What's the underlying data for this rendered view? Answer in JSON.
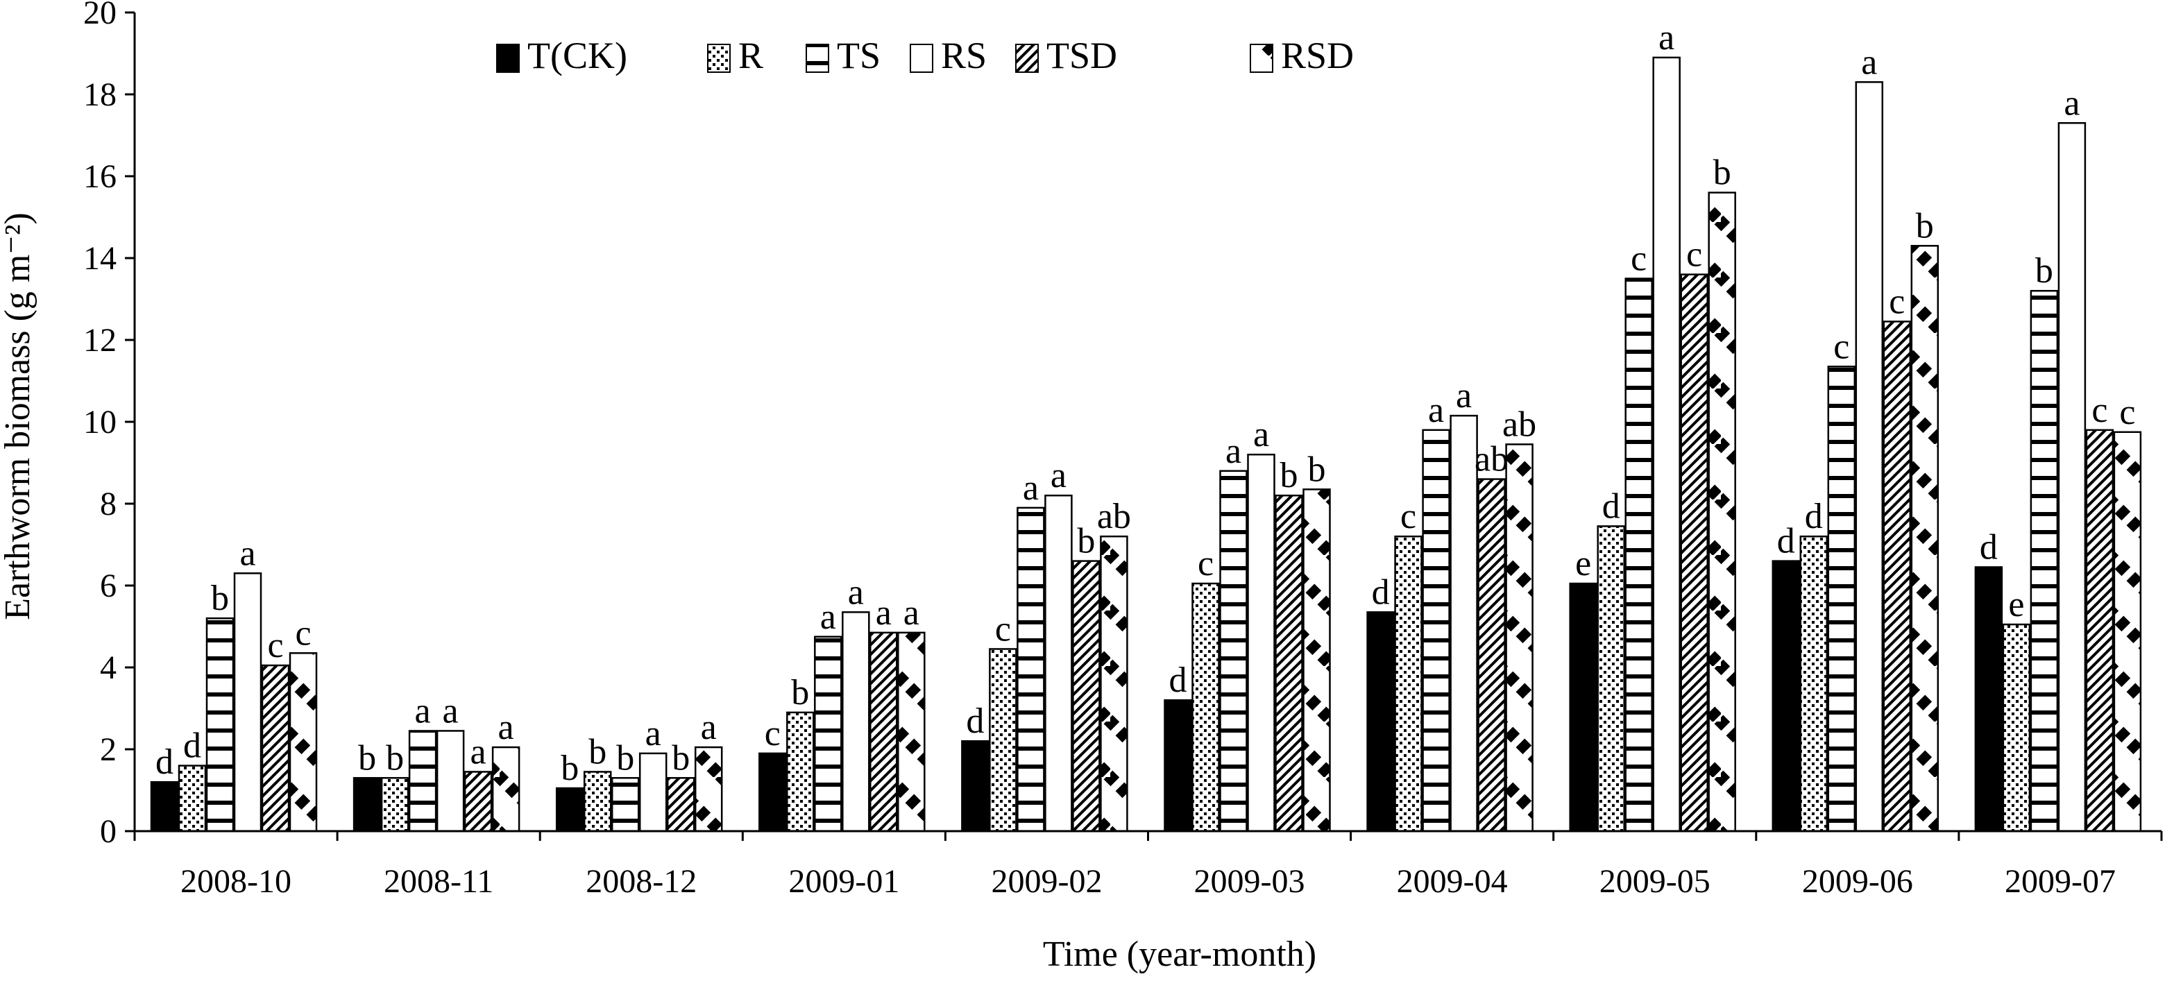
{
  "chart_data": {
    "type": "bar",
    "title": "",
    "xlabel": "Time (year-month)",
    "ylabel": "Earthworm biomass (g m⁻²)",
    "ylim": [
      0,
      20
    ],
    "yticks": [
      0,
      2,
      4,
      6,
      8,
      10,
      12,
      14,
      16,
      18,
      20
    ],
    "grid": false,
    "legend_position": "top-left",
    "categories": [
      "2008-10",
      "2008-11",
      "2008-12",
      "2009-01",
      "2009-02",
      "2009-03",
      "2009-04",
      "2009-05",
      "2009-06",
      "2009-07"
    ],
    "series": [
      {
        "name": "T(CK)",
        "pattern": "solid",
        "values": [
          1.2,
          1.3,
          1.05,
          1.9,
          2.2,
          3.2,
          5.35,
          6.05,
          6.6,
          6.45
        ],
        "labels": [
          "d",
          "b",
          "b",
          "c",
          "d",
          "d",
          "d",
          "e",
          "d",
          "d"
        ]
      },
      {
        "name": "R",
        "pattern": "dots",
        "values": [
          1.6,
          1.3,
          1.45,
          2.9,
          4.45,
          6.05,
          7.2,
          7.45,
          7.2,
          5.05
        ],
        "labels": [
          "d",
          "b",
          "b",
          "b",
          "c",
          "c",
          "c",
          "d",
          "d",
          "e"
        ]
      },
      {
        "name": "TS",
        "pattern": "horizontal",
        "values": [
          5.2,
          2.45,
          1.3,
          4.75,
          7.9,
          8.8,
          9.8,
          13.5,
          11.35,
          13.2
        ],
        "labels": [
          "b",
          "a",
          "b",
          "a",
          "a",
          "a",
          "a",
          "c",
          "c",
          "b"
        ]
      },
      {
        "name": "RS",
        "pattern": "empty",
        "values": [
          6.3,
          2.45,
          1.9,
          5.35,
          8.2,
          9.2,
          10.15,
          18.9,
          18.3,
          17.3
        ],
        "labels": [
          "a",
          "a",
          "a",
          "a",
          "a",
          "a",
          "a",
          "a",
          "a",
          "a"
        ]
      },
      {
        "name": "TSD",
        "pattern": "diagonal",
        "values": [
          4.05,
          1.45,
          1.3,
          4.85,
          6.6,
          8.2,
          8.6,
          13.6,
          12.45,
          9.8
        ],
        "labels": [
          "c",
          "a",
          "b",
          "a",
          "b",
          "b",
          "ab",
          "c",
          "c",
          "c"
        ]
      },
      {
        "name": "RSD",
        "pattern": "steps",
        "values": [
          4.35,
          2.05,
          2.05,
          4.85,
          7.2,
          8.35,
          9.45,
          15.6,
          14.3,
          9.75
        ],
        "labels": [
          "c",
          "a",
          "a",
          "a",
          "ab",
          "b",
          "ab",
          "b",
          "b",
          "c"
        ]
      }
    ]
  }
}
